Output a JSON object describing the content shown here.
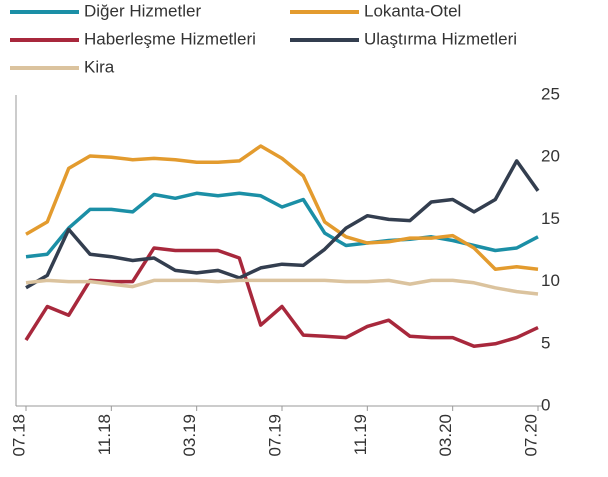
{
  "chart_data": {
    "type": "line",
    "categories": [
      "07.18",
      null,
      null,
      null,
      "11.18",
      null,
      null,
      null,
      "03.19",
      null,
      null,
      null,
      "07.19",
      null,
      null,
      null,
      "11.19",
      null,
      null,
      null,
      "03.20",
      null,
      null,
      null,
      "07.20"
    ],
    "series": [
      {
        "name": "Diğer Hizmetler",
        "color": "#1b8fa6",
        "values": [
          12.0,
          12.2,
          14.3,
          15.8,
          15.8,
          15.6,
          17.0,
          16.7,
          17.1,
          16.9,
          17.1,
          16.9,
          16.0,
          16.6,
          13.9,
          12.9,
          13.1,
          13.3,
          13.4,
          13.6,
          13.3,
          12.9,
          12.5,
          12.7,
          13.6
        ]
      },
      {
        "name": "Lokanta-Otel",
        "color": "#e39b2e",
        "values": [
          13.8,
          14.8,
          19.1,
          20.1,
          20.0,
          19.8,
          19.9,
          19.8,
          19.6,
          19.6,
          19.7,
          20.9,
          19.9,
          18.5,
          14.8,
          13.6,
          13.1,
          13.2,
          13.5,
          13.5,
          13.7,
          12.7,
          11.0,
          11.2,
          11.0
        ]
      },
      {
        "name": "Haberleşme Hizmetleri",
        "color": "#a8283c",
        "values": [
          5.3,
          8.0,
          7.3,
          10.1,
          10.0,
          10.0,
          12.7,
          12.5,
          12.5,
          12.5,
          11.9,
          6.5,
          8.0,
          5.7,
          5.6,
          5.5,
          6.4,
          6.9,
          5.6,
          5.5,
          5.5,
          4.8,
          5.0,
          5.5,
          6.3
        ]
      },
      {
        "name": "Ulaştırma Hizmetleri",
        "color": "#333e4f",
        "values": [
          9.5,
          10.5,
          14.2,
          12.2,
          12.0,
          11.7,
          11.9,
          10.9,
          10.7,
          10.9,
          10.3,
          11.1,
          11.4,
          11.3,
          12.6,
          14.3,
          15.3,
          15.0,
          14.9,
          16.4,
          16.6,
          15.6,
          16.6,
          19.7,
          17.3
        ]
      },
      {
        "name": "Kira",
        "color": "#dbc39e",
        "values": [
          9.9,
          10.1,
          10.0,
          10.0,
          9.8,
          9.6,
          10.1,
          10.1,
          10.1,
          10.0,
          10.1,
          10.1,
          10.1,
          10.1,
          10.1,
          10.0,
          10.0,
          10.1,
          9.8,
          10.1,
          10.1,
          9.9,
          9.5,
          9.2,
          9.0
        ]
      }
    ],
    "ylim": [
      0,
      25
    ],
    "yticks": [
      0,
      5,
      10,
      15,
      20,
      25
    ],
    "grid": false
  }
}
